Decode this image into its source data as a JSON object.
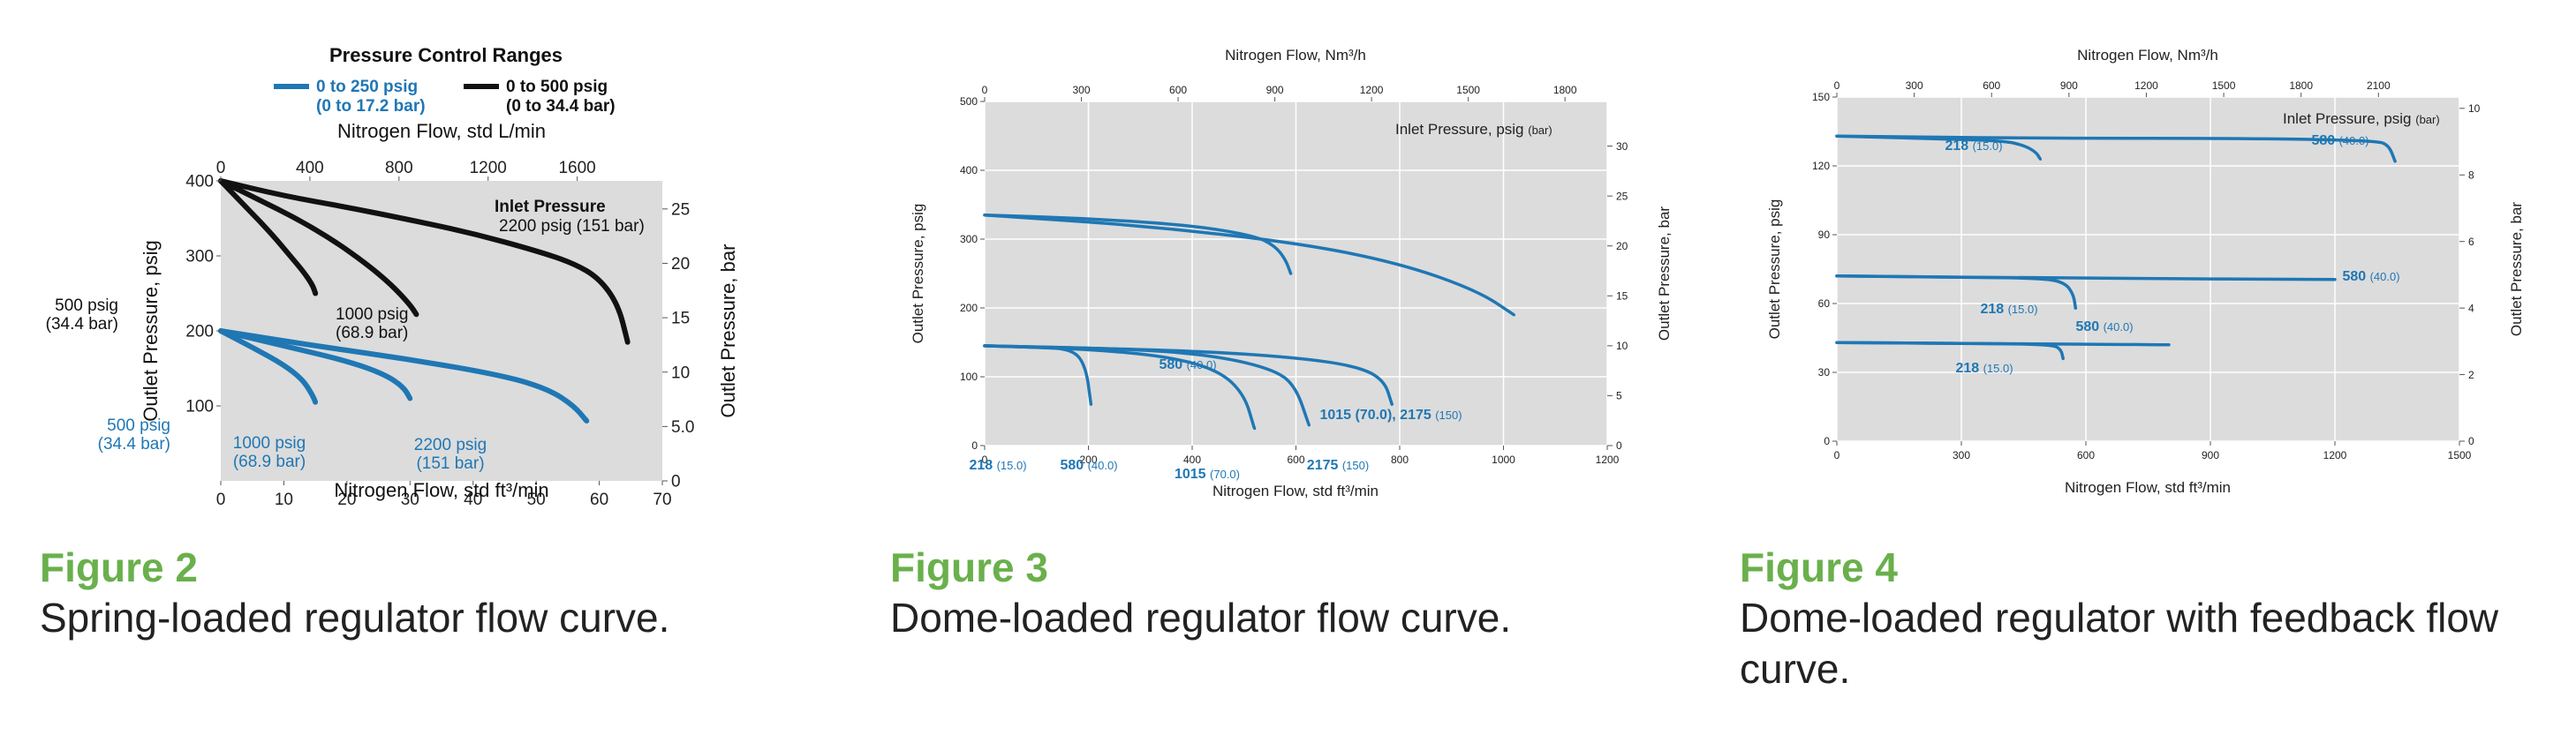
{
  "colors": {
    "blue": "#1f77b4",
    "black": "#111111",
    "plot_bg": "#dcdcdc",
    "caption": "#6ab04c"
  },
  "figures": [
    {
      "label": "Figure 2",
      "caption": "Spring-loaded regulator flow curve."
    },
    {
      "label": "Figure 3",
      "caption": "Dome-loaded regulator flow curve."
    },
    {
      "label": "Figure 4",
      "caption": "Dome-loaded regulator with feedback flow curve."
    }
  ],
  "chart_data": [
    {
      "type": "line",
      "title": "Pressure Control Ranges",
      "legend": [
        {
          "name": "0 to 250 psig",
          "sub": "(0 to 17.2 bar)",
          "color": "blue"
        },
        {
          "name": "0 to 500 psig",
          "sub": "(0 to 34.4 bar)",
          "color": "black"
        }
      ],
      "xlabel": "Nitrogen Flow, std ft³/min",
      "x2label": "Nitrogen Flow, std L/min",
      "ylabel": "Outlet Pressure, psig",
      "y2label": "Outlet Pressure, bar",
      "xlim": [
        0,
        70
      ],
      "ylim": [
        0,
        400
      ],
      "x2lim": [
        0,
        1982
      ],
      "y2lim": [
        0,
        27.58
      ],
      "x_ticks": [
        0,
        10,
        20,
        30,
        40,
        50,
        60,
        70
      ],
      "y_ticks": [
        100,
        200,
        300,
        400
      ],
      "x2_ticks": [
        0,
        400,
        800,
        1200,
        1600
      ],
      "y2_ticks": [
        0,
        5.0,
        10,
        15,
        20,
        25
      ],
      "y2_tick_labels": [
        "0",
        "5.0",
        "10",
        "15",
        "20",
        "25"
      ],
      "annotation": {
        "line1": "Inlet Pressure",
        "line2": "2200 psig (151 bar)"
      },
      "series": [
        {
          "color": "black",
          "label1": "500 psig",
          "label2": "(34.4 bar)",
          "x": [
            0,
            4,
            8,
            11,
            13,
            14.5,
            15
          ],
          "y": [
            400,
            365,
            330,
            300,
            280,
            262,
            250
          ]
        },
        {
          "color": "black",
          "label1": "1000 psig",
          "label2": "(68.9 bar)",
          "x": [
            0,
            6,
            12,
            18,
            23,
            27,
            30,
            31
          ],
          "y": [
            400,
            375,
            350,
            320,
            290,
            262,
            235,
            222
          ]
        },
        {
          "color": "black",
          "x": [
            0,
            10,
            20,
            30,
            40,
            50,
            56,
            60,
            63,
            64.5
          ],
          "y": [
            400,
            380,
            365,
            348,
            330,
            307,
            290,
            270,
            235,
            185
          ]
        },
        {
          "color": "blue",
          "label1": "500 psig",
          "label2": "(34.4 bar)",
          "x": [
            0,
            5,
            10,
            13,
            14.5,
            15
          ],
          "y": [
            200,
            178,
            155,
            135,
            115,
            105
          ]
        },
        {
          "color": "blue",
          "label1": "1000 psig",
          "label2": "(68.9 bar)",
          "x": [
            0,
            10,
            20,
            26,
            29,
            30
          ],
          "y": [
            200,
            180,
            160,
            142,
            125,
            110
          ]
        },
        {
          "color": "blue",
          "label1": "2200 psig",
          "label2": "(151 bar)",
          "x": [
            0,
            15,
            30,
            45,
            52,
            56,
            58
          ],
          "y": [
            200,
            180,
            162,
            140,
            122,
            100,
            80
          ]
        }
      ]
    },
    {
      "type": "line",
      "xlabel": "Nitrogen Flow, std ft³/min",
      "x2label": "Nitrogen Flow, Nm³/h",
      "ylabel": "Outlet Pressure, psig",
      "y2label": "Outlet Pressure, bar",
      "xlim": [
        0,
        1200
      ],
      "ylim": [
        0,
        500
      ],
      "x2lim": [
        0,
        1931
      ],
      "y2lim": [
        0,
        34.47
      ],
      "x_ticks": [
        0,
        200,
        400,
        600,
        800,
        1000,
        1200
      ],
      "y_ticks": [
        0,
        100,
        200,
        300,
        400,
        500
      ],
      "x2_ticks": [
        0,
        300,
        600,
        900,
        1200,
        1500,
        1800
      ],
      "y2_ticks": [
        0,
        5,
        10,
        15,
        20,
        25,
        30
      ],
      "annotation": {
        "line1": "Inlet Pressure, psig",
        "line2": "(bar)"
      },
      "series": [
        {
          "color": "blue",
          "label1": "580",
          "label2": "(40.0)",
          "x": [
            0,
            200,
            400,
            520,
            560,
            580,
            590
          ],
          "y": [
            335,
            330,
            320,
            305,
            290,
            270,
            250
          ]
        },
        {
          "color": "blue",
          "label1": "1015 (70.0), 2175",
          "label2": "(150)",
          "x": [
            0,
            300,
            600,
            800,
            950,
            1020
          ],
          "y": [
            335,
            320,
            295,
            265,
            225,
            190
          ]
        },
        {
          "color": "blue",
          "label1": "218",
          "label2": "(15.0)",
          "x": [
            0,
            100,
            170,
            195,
            205
          ],
          "y": [
            145,
            143,
            140,
            115,
            60
          ]
        },
        {
          "color": "blue",
          "label1": "580",
          "label2": "(40.0)",
          "x": [
            0,
            200,
            350,
            450,
            500,
            520
          ],
          "y": [
            145,
            140,
            130,
            110,
            75,
            25
          ]
        },
        {
          "color": "blue",
          "label1": "1015",
          "label2": "(70.0)",
          "x": [
            0,
            300,
            450,
            560,
            600,
            625
          ],
          "y": [
            145,
            140,
            130,
            110,
            85,
            30
          ]
        },
        {
          "color": "blue",
          "label1": "2175",
          "label2": "(150)",
          "x": [
            0,
            400,
            600,
            720,
            770,
            785
          ],
          "y": [
            145,
            138,
            128,
            115,
            95,
            60
          ]
        }
      ]
    },
    {
      "type": "line",
      "xlabel": "Nitrogen Flow, std ft³/min",
      "x2label": "Nitrogen Flow, Nm³/h",
      "ylabel": "Outlet Pressure, psig",
      "y2label": "Outlet Pressure, bar",
      "xlim": [
        0,
        1500
      ],
      "ylim": [
        0,
        150
      ],
      "x2lim": [
        0,
        2414
      ],
      "y2lim": [
        0,
        10.34
      ],
      "x_ticks": [
        0,
        300,
        600,
        900,
        1200,
        1500
      ],
      "y_ticks": [
        0,
        30,
        60,
        90,
        120,
        150
      ],
      "x2_ticks": [
        0,
        300,
        600,
        900,
        1200,
        1500,
        1800,
        2100
      ],
      "y2_ticks": [
        0,
        2,
        4,
        6,
        8,
        10
      ],
      "annotation": {
        "line1": "Inlet Pressure, psig",
        "line2": "(bar)"
      },
      "series": [
        {
          "color": "blue",
          "label1": "218",
          "label2": "(15.0)",
          "x": [
            0,
            200,
            400,
            450,
            480,
            490
          ],
          "y": [
            133,
            132,
            131,
            129,
            126,
            123
          ]
        },
        {
          "color": "blue",
          "label1": "580",
          "label2": "(40.0)",
          "x": [
            0,
            500,
            1000,
            1300,
            1330,
            1345
          ],
          "y": [
            133,
            132,
            132,
            131,
            129,
            122
          ]
        },
        {
          "color": "blue",
          "label1": "218",
          "label2": "(15.0)",
          "x": [
            0,
            300,
            500,
            550,
            570,
            575
          ],
          "y": [
            72,
            71.5,
            71,
            69,
            64,
            58
          ]
        },
        {
          "color": "blue",
          "label1": "580",
          "label2": "(40.0)",
          "x": [
            0,
            600,
            1200
          ],
          "y": [
            72,
            71,
            70.5
          ]
        },
        {
          "color": "blue",
          "label1": "218",
          "label2": "(15.0)",
          "x": [
            0,
            400,
            520,
            540,
            545
          ],
          "y": [
            43,
            42.5,
            42,
            40,
            36
          ]
        },
        {
          "color": "blue",
          "label1": "580",
          "label2": "(40.0)",
          "x": [
            0,
            400,
            800
          ],
          "y": [
            43,
            42.5,
            42
          ]
        }
      ]
    }
  ]
}
